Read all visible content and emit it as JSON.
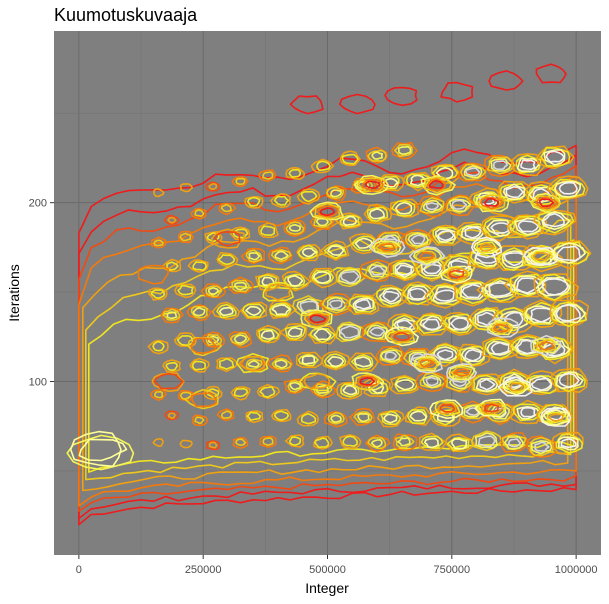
{
  "chart_data": {
    "type": "contour",
    "title": "Kuumotuskuvaaja",
    "xlabel": "Integer",
    "ylabel": "Iterations",
    "x_ticks": [
      {
        "value": 0,
        "label": "0"
      },
      {
        "value": 250000,
        "label": "250000"
      },
      {
        "value": 500000,
        "label": "500000"
      },
      {
        "value": 750000,
        "label": "750000"
      },
      {
        "value": 1000000,
        "label": "1000000"
      }
    ],
    "y_ticks": [
      {
        "value": 100,
        "label": "100"
      },
      {
        "value": 200,
        "label": "200"
      }
    ],
    "xlim": [
      -50000,
      1050000
    ],
    "ylim": [
      3,
      296
    ],
    "grid": true,
    "panel_color": "#7f7f7f",
    "level_colors": [
      "#ee1c1c",
      "#f04a14",
      "#f3790d",
      "#f0a010",
      "#eec81a",
      "#f0e520",
      "#f5f55a",
      "#ffff9a",
      "#d9d9d9",
      "#f2f2f2"
    ],
    "density_bands": [
      {
        "x": [
          0,
          80000
        ],
        "y": [
          55,
          70
        ],
        "level": 8
      },
      {
        "x": [
          0,
          1000000
        ],
        "y": [
          35,
          45
        ],
        "level": 2
      },
      {
        "x": [
          0,
          1000000
        ],
        "y": [
          25,
          35
        ],
        "level": 0
      }
    ],
    "hotspots": [
      {
        "x": 460000,
        "y": 255,
        "level": 0
      },
      {
        "x": 560000,
        "y": 255,
        "level": 0
      },
      {
        "x": 650000,
        "y": 260,
        "level": 0
      },
      {
        "x": 760000,
        "y": 262,
        "level": 0
      },
      {
        "x": 860000,
        "y": 268,
        "level": 0
      },
      {
        "x": 950000,
        "y": 272,
        "level": 0
      },
      {
        "x": 820000,
        "y": 175,
        "level": 9
      },
      {
        "x": 930000,
        "y": 170,
        "level": 9
      },
      {
        "x": 880000,
        "y": 97,
        "level": 9
      },
      {
        "x": 960000,
        "y": 80,
        "level": 9
      },
      {
        "x": 700000,
        "y": 170,
        "level": 8
      },
      {
        "x": 620000,
        "y": 175,
        "level": 8
      },
      {
        "x": 850000,
        "y": 130,
        "level": 8
      },
      {
        "x": 940000,
        "y": 120,
        "level": 8
      },
      {
        "x": 770000,
        "y": 105,
        "level": 8
      },
      {
        "x": 700000,
        "y": 110,
        "level": 8
      },
      {
        "x": 650000,
        "y": 125,
        "level": 7
      },
      {
        "x": 760000,
        "y": 160,
        "level": 7
      },
      {
        "x": 830000,
        "y": 85,
        "level": 7
      },
      {
        "x": 740000,
        "y": 85,
        "level": 7
      },
      {
        "x": 940000,
        "y": 200,
        "level": 6
      },
      {
        "x": 830000,
        "y": 200,
        "level": 6
      },
      {
        "x": 720000,
        "y": 210,
        "level": 6
      },
      {
        "x": 590000,
        "y": 210,
        "level": 6
      },
      {
        "x": 500000,
        "y": 195,
        "level": 6
      },
      {
        "x": 480000,
        "y": 135,
        "level": 6
      },
      {
        "x": 580000,
        "y": 100,
        "level": 6
      },
      {
        "x": 480000,
        "y": 100,
        "level": 5
      },
      {
        "x": 400000,
        "y": 150,
        "level": 5
      },
      {
        "x": 350000,
        "y": 110,
        "level": 5
      },
      {
        "x": 250000,
        "y": 120,
        "level": 4
      },
      {
        "x": 250000,
        "y": 90,
        "level": 4
      },
      {
        "x": 180000,
        "y": 100,
        "level": 3
      },
      {
        "x": 300000,
        "y": 180,
        "level": 3
      },
      {
        "x": 150000,
        "y": 160,
        "level": 2
      }
    ]
  }
}
